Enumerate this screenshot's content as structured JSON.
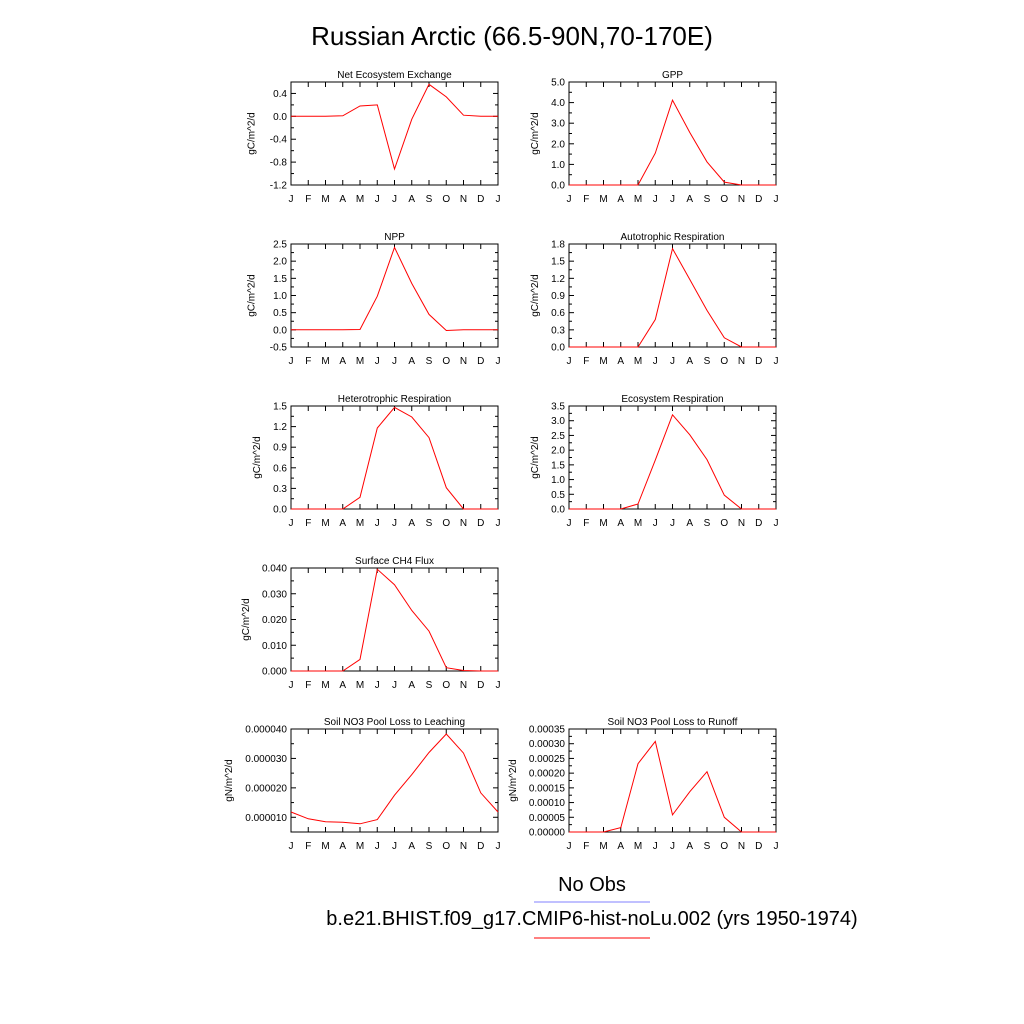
{
  "page": {
    "title": "Russian Arctic (66.5-90N,70-170E)",
    "legend": {
      "obs_label": "No Obs",
      "obs_color": "#8080ff",
      "model_label": "b.e21.BHIST.f09_g17.CMIP6-hist-noLu.002 (yrs 1950-1974)",
      "model_color": "#ff0000"
    }
  },
  "chart_data": [
    {
      "type": "line",
      "title": "Net Ecosystem Exchange",
      "ylabel": "gC/m^2/d",
      "x": [
        "J",
        "F",
        "M",
        "A",
        "M",
        "J",
        "J",
        "A",
        "S",
        "O",
        "N",
        "D",
        "J"
      ],
      "ylim": [
        -1.2,
        0.6
      ],
      "yticks": [
        -1.2,
        -0.8,
        -0.4,
        0.0,
        0.4
      ],
      "ytick_labels": [
        "-1.2",
        "-0.8",
        "-0.4",
        "0.0",
        "0.4"
      ],
      "series": [
        {
          "color": "#ff0000",
          "values": [
            0.0,
            0.0,
            0.0,
            0.01,
            0.18,
            0.2,
            -0.92,
            -0.05,
            0.56,
            0.34,
            0.02,
            0.0,
            0.0
          ]
        }
      ]
    },
    {
      "type": "line",
      "title": "GPP",
      "ylabel": "gC/m^2/d",
      "x": [
        "J",
        "F",
        "M",
        "A",
        "M",
        "J",
        "J",
        "A",
        "S",
        "O",
        "N",
        "D",
        "J"
      ],
      "ylim": [
        0,
        5.0
      ],
      "yticks": [
        0,
        1,
        2,
        3,
        4,
        5
      ],
      "ytick_labels": [
        "0.0",
        "1.0",
        "2.0",
        "3.0",
        "4.0",
        "5.0"
      ],
      "series": [
        {
          "color": "#ff0000",
          "values": [
            0.0,
            0.0,
            0.0,
            0.0,
            0.0,
            1.55,
            4.12,
            2.55,
            1.12,
            0.14,
            0.0,
            0.0,
            0.0
          ]
        }
      ]
    },
    {
      "type": "line",
      "title": "NPP",
      "ylabel": "gC/m^2/d",
      "x": [
        "J",
        "F",
        "M",
        "A",
        "M",
        "J",
        "J",
        "A",
        "S",
        "O",
        "N",
        "D",
        "J"
      ],
      "ylim": [
        -0.5,
        2.5
      ],
      "yticks": [
        -0.5,
        0.0,
        0.5,
        1.0,
        1.5,
        2.0,
        2.5
      ],
      "ytick_labels": [
        "-0.5",
        "0.0",
        "0.5",
        "1.0",
        "1.5",
        "2.0",
        "2.5"
      ],
      "series": [
        {
          "color": "#ff0000",
          "values": [
            0.0,
            0.0,
            0.0,
            0.0,
            0.01,
            0.98,
            2.4,
            1.35,
            0.45,
            -0.02,
            0.0,
            0.0,
            0.0
          ]
        }
      ]
    },
    {
      "type": "line",
      "title": "Autotrophic Respiration",
      "ylabel": "gC/m^2/d",
      "x": [
        "J",
        "F",
        "M",
        "A",
        "M",
        "J",
        "J",
        "A",
        "S",
        "O",
        "N",
        "D",
        "J"
      ],
      "ylim": [
        0,
        1.8
      ],
      "yticks": [
        0,
        0.3,
        0.6,
        0.9,
        1.2,
        1.5,
        1.8
      ],
      "ytick_labels": [
        "0.0",
        "0.3",
        "0.6",
        "0.9",
        "1.2",
        "1.5",
        "1.8"
      ],
      "series": [
        {
          "color": "#ff0000",
          "values": [
            0.0,
            0.0,
            0.0,
            0.0,
            0.0,
            0.48,
            1.72,
            1.18,
            0.64,
            0.16,
            0.0,
            0.0,
            0.0
          ]
        }
      ]
    },
    {
      "type": "line",
      "title": "Heterotrophic Respiration",
      "ylabel": "gC/m^2/d",
      "x": [
        "J",
        "F",
        "M",
        "A",
        "M",
        "J",
        "J",
        "A",
        "S",
        "O",
        "N",
        "D",
        "J"
      ],
      "ylim": [
        0,
        1.5
      ],
      "yticks": [
        0,
        0.3,
        0.6,
        0.9,
        1.2,
        1.5
      ],
      "ytick_labels": [
        "0.0",
        "0.3",
        "0.6",
        "0.9",
        "1.2",
        "1.5"
      ],
      "series": [
        {
          "color": "#ff0000",
          "values": [
            0.0,
            0.0,
            0.0,
            0.0,
            0.17,
            1.18,
            1.48,
            1.34,
            1.04,
            0.31,
            0.0,
            0.0,
            0.0
          ]
        }
      ]
    },
    {
      "type": "line",
      "title": "Ecosystem Respiration",
      "ylabel": "gC/m^2/d",
      "x": [
        "J",
        "F",
        "M",
        "A",
        "M",
        "J",
        "J",
        "A",
        "S",
        "O",
        "N",
        "D",
        "J"
      ],
      "ylim": [
        0,
        3.5
      ],
      "yticks": [
        0,
        0.5,
        1.0,
        1.5,
        2.0,
        2.5,
        3.0,
        3.5
      ],
      "ytick_labels": [
        "0.0",
        "0.5",
        "1.0",
        "1.5",
        "2.0",
        "2.5",
        "3.0",
        "3.5"
      ],
      "series": [
        {
          "color": "#ff0000",
          "values": [
            0.0,
            0.0,
            0.0,
            0.0,
            0.17,
            1.66,
            3.2,
            2.52,
            1.68,
            0.47,
            0.0,
            0.0,
            0.0
          ]
        }
      ]
    },
    {
      "type": "line",
      "title": "Surface CH4 Flux",
      "ylabel": "gC/m^2/d",
      "x": [
        "J",
        "F",
        "M",
        "A",
        "M",
        "J",
        "J",
        "A",
        "S",
        "O",
        "N",
        "D",
        "J"
      ],
      "ylim": [
        0,
        0.04
      ],
      "yticks": [
        0,
        0.01,
        0.02,
        0.03,
        0.04
      ],
      "ytick_labels": [
        "0.000",
        "0.010",
        "0.020",
        "0.030",
        "0.040"
      ],
      "series": [
        {
          "color": "#ff0000",
          "values": [
            0.0,
            0.0,
            0.0,
            0.0,
            0.0045,
            0.0395,
            0.0335,
            0.0235,
            0.0155,
            0.0013,
            0.0002,
            0.0,
            0.0
          ]
        }
      ]
    },
    {
      "type": "line",
      "title": "Soil NO3 Pool Loss to Leaching",
      "ylabel": "gN/m^2/d",
      "x": [
        "J",
        "F",
        "M",
        "A",
        "M",
        "J",
        "J",
        "A",
        "S",
        "O",
        "N",
        "D",
        "J"
      ],
      "ylim": [
        5e-06,
        4e-05
      ],
      "yticks": [
        1e-05,
        2e-05,
        3e-05,
        4e-05
      ],
      "ytick_labels": [
        "0.000010",
        "0.000020",
        "0.000030",
        "0.000040"
      ],
      "series": [
        {
          "color": "#ff0000",
          "values": [
            1.18e-05,
            9.5e-06,
            8.5e-06,
            8.3e-06,
            7.8e-06,
            9.2e-06,
            1.75e-05,
            2.45e-05,
            3.2e-05,
            3.83e-05,
            3.18e-05,
            1.83e-05,
            1.18e-05
          ]
        }
      ]
    },
    {
      "type": "line",
      "title": "Soil NO3 Pool Loss to Runoff",
      "ylabel": "gN/m^2/d",
      "x": [
        "J",
        "F",
        "M",
        "A",
        "M",
        "J",
        "J",
        "A",
        "S",
        "O",
        "N",
        "D",
        "J"
      ],
      "ylim": [
        0,
        0.00035
      ],
      "yticks": [
        0,
        5e-05,
        0.0001,
        0.00015,
        0.0002,
        0.00025,
        0.0003,
        0.00035
      ],
      "ytick_labels": [
        "0.00000",
        "0.00005",
        "0.00010",
        "0.00015",
        "0.00020",
        "0.00025",
        "0.00030",
        "0.00035"
      ],
      "series": [
        {
          "color": "#ff0000",
          "values": [
            0.0,
            0.0,
            0.0,
            1.5e-05,
            0.000232,
            0.000308,
            5.8e-05,
            0.000137,
            0.000205,
            5e-05,
            0.0,
            0.0,
            0.0
          ]
        }
      ]
    }
  ]
}
